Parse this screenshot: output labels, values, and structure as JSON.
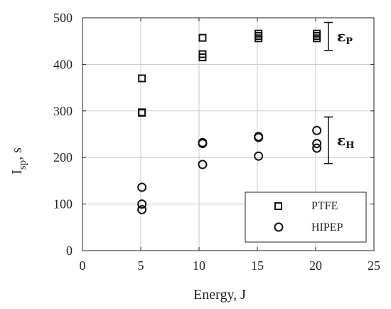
{
  "chart_data": {
    "type": "scatter",
    "xlabel": "Energy, J",
    "ylabel": {
      "main": "I",
      "sub": "sp",
      "unit": ", s"
    },
    "xlim": [
      0,
      25
    ],
    "ylim": [
      0,
      500
    ],
    "xticks": [
      0,
      5,
      10,
      15,
      20,
      25
    ],
    "yticks": [
      0,
      100,
      200,
      300,
      400,
      500
    ],
    "grid": true,
    "legend_position": "bottom-right",
    "series": [
      {
        "name": "PTFE",
        "marker": "square",
        "color": "#111111",
        "points": [
          {
            "x": 5.1,
            "y": 370
          },
          {
            "x": 5.1,
            "y": 297
          },
          {
            "x": 5.1,
            "y": 296
          },
          {
            "x": 10.3,
            "y": 457
          },
          {
            "x": 10.3,
            "y": 422
          },
          {
            "x": 10.3,
            "y": 415
          },
          {
            "x": 15.1,
            "y": 466
          },
          {
            "x": 15.1,
            "y": 461
          },
          {
            "x": 15.1,
            "y": 456
          },
          {
            "x": 20.1,
            "y": 466
          },
          {
            "x": 20.1,
            "y": 461
          },
          {
            "x": 20.1,
            "y": 456
          }
        ]
      },
      {
        "name": "HIPEP",
        "marker": "circle",
        "color": "#111111",
        "points": [
          {
            "x": 5.1,
            "y": 136
          },
          {
            "x": 5.1,
            "y": 100
          },
          {
            "x": 5.1,
            "y": 88
          },
          {
            "x": 10.3,
            "y": 232
          },
          {
            "x": 10.3,
            "y": 230
          },
          {
            "x": 10.3,
            "y": 185
          },
          {
            "x": 15.1,
            "y": 245
          },
          {
            "x": 15.1,
            "y": 243
          },
          {
            "x": 15.1,
            "y": 203
          },
          {
            "x": 20.1,
            "y": 258
          },
          {
            "x": 20.1,
            "y": 230
          },
          {
            "x": 20.1,
            "y": 220
          }
        ]
      }
    ],
    "error_bars": [
      {
        "label": "ε",
        "subscript": "P",
        "x": 21.1,
        "y_low": 430,
        "y_high": 490
      },
      {
        "label": "ε",
        "subscript": "H",
        "x": 21.1,
        "y_low": 187,
        "y_high": 287
      }
    ]
  }
}
